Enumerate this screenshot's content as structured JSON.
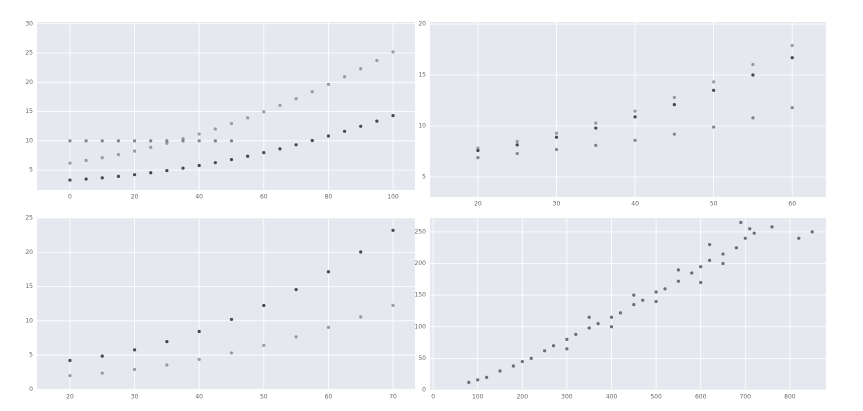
{
  "chart_data": [
    {
      "type": "scatter",
      "grid": true,
      "xlim": [
        -10.2,
        106.8
      ],
      "ylim": [
        1.6,
        30.3
      ],
      "xticks": [
        0,
        20,
        40,
        60,
        80,
        100
      ],
      "yticks": [
        5,
        10,
        15,
        20,
        25,
        30
      ],
      "series": [
        {
          "color": "#8a8d93",
          "x": [
            0,
            5,
            10,
            15,
            20,
            25,
            30,
            35,
            40,
            45,
            50,
            55,
            60,
            65,
            70,
            75,
            80,
            85,
            90,
            95,
            100
          ],
          "values": [
            6.2,
            6.65,
            7.11,
            7.65,
            8.24,
            8.89,
            9.59,
            10.35,
            11.16,
            12.03,
            12.95,
            13.93,
            14.96,
            16.05,
            17.19,
            18.39,
            19.64,
            20.95,
            22.31,
            23.73,
            25.2
          ]
        },
        {
          "color": "#2a2c30",
          "x": [
            0,
            5,
            10,
            15,
            20,
            25,
            30,
            35,
            40,
            45,
            50,
            55,
            60,
            65,
            70,
            75,
            80,
            85,
            90,
            95,
            100
          ],
          "values": [
            3.3,
            3.47,
            3.68,
            3.93,
            4.22,
            4.55,
            4.92,
            5.33,
            5.78,
            6.27,
            6.8,
            7.37,
            7.98,
            8.63,
            9.32,
            10.05,
            10.82,
            11.63,
            12.48,
            13.37,
            14.3
          ]
        },
        {
          "color": "#6e7176",
          "x": [
            0,
            5,
            10,
            15,
            20,
            25,
            30,
            35,
            40,
            45,
            50
          ],
          "values": [
            10,
            10,
            10,
            10,
            10,
            10,
            10,
            10,
            10,
            10,
            10
          ]
        }
      ]
    },
    {
      "type": "scatter",
      "grid": true,
      "xlim": [
        13.9,
        64.3
      ],
      "ylim": [
        3.04,
        20.2
      ],
      "xticks": [
        20,
        30,
        40,
        50,
        60
      ],
      "yticks": [
        5,
        10,
        15,
        20
      ],
      "series": [
        {
          "color": "#8a8d93",
          "x": [
            20,
            25,
            30,
            35,
            40,
            45,
            50,
            55,
            60
          ],
          "values": [
            7.84,
            8.48,
            9.29,
            10.29,
            11.46,
            12.8,
            14.33,
            16.03,
            17.9
          ]
        },
        {
          "color": "#2a2c30",
          "x": [
            20,
            25,
            30,
            35,
            40,
            45,
            50,
            55,
            60
          ],
          "values": [
            7.6,
            8.15,
            8.9,
            9.8,
            10.9,
            12.1,
            13.5,
            15.0,
            16.7
          ]
        },
        {
          "color": "#6e7176",
          "x": [
            20,
            25,
            30,
            35,
            40,
            45,
            50,
            55,
            60
          ],
          "values": [
            6.9,
            7.3,
            7.7,
            8.1,
            8.6,
            9.2,
            9.9,
            10.8,
            11.8
          ]
        }
      ]
    },
    {
      "type": "scatter",
      "grid": true,
      "xlim": [
        14.9,
        73.4
      ],
      "ylim": [
        -0.1,
        25
      ],
      "xticks": [
        20,
        30,
        40,
        50,
        60,
        70
      ],
      "yticks": [
        0,
        5,
        10,
        15,
        20,
        25
      ],
      "series": [
        {
          "color": "#2a2c30",
          "x": [
            20,
            25,
            30,
            35,
            40,
            45,
            50,
            55,
            60,
            65,
            70
          ],
          "values": [
            4.2,
            4.84,
            5.76,
            6.96,
            8.44,
            10.2,
            12.24,
            14.56,
            17.16,
            20.04,
            23.2
          ]
        },
        {
          "color": "#8a8d93",
          "x": [
            20,
            25,
            30,
            35,
            40,
            45,
            50,
            55,
            60,
            65,
            70
          ],
          "values": [
            2.0,
            2.37,
            2.89,
            3.55,
            4.36,
            5.31,
            6.41,
            7.65,
            9.04,
            10.57,
            12.25
          ]
        }
      ]
    },
    {
      "type": "scatter",
      "grid": true,
      "xlim": [
        -7,
        881
      ],
      "ylim": [
        0,
        272
      ],
      "xticks": [
        0,
        100,
        200,
        300,
        400,
        500,
        600,
        700,
        800
      ],
      "yticks": [
        0,
        50,
        100,
        150,
        200,
        250
      ],
      "series": [
        {
          "color": "#55585d",
          "x": [
            80,
            100,
            120,
            150,
            180,
            200,
            220,
            250,
            270,
            300,
            320,
            350,
            370,
            400,
            420,
            450,
            470,
            500,
            520,
            550,
            580,
            600,
            620,
            650,
            680,
            700,
            720,
            760,
            300,
            350,
            400,
            450,
            500,
            550,
            600,
            650,
            620,
            690,
            710,
            820,
            850
          ],
          "values": [
            12,
            16,
            20,
            30,
            38,
            45,
            50,
            62,
            70,
            80,
            88,
            98,
            105,
            115,
            122,
            135,
            142,
            155,
            160,
            172,
            185,
            195,
            205,
            215,
            225,
            240,
            248,
            258,
            65,
            115,
            100,
            150,
            140,
            190,
            170,
            200,
            230,
            265,
            255,
            240,
            250
          ]
        }
      ]
    }
  ]
}
